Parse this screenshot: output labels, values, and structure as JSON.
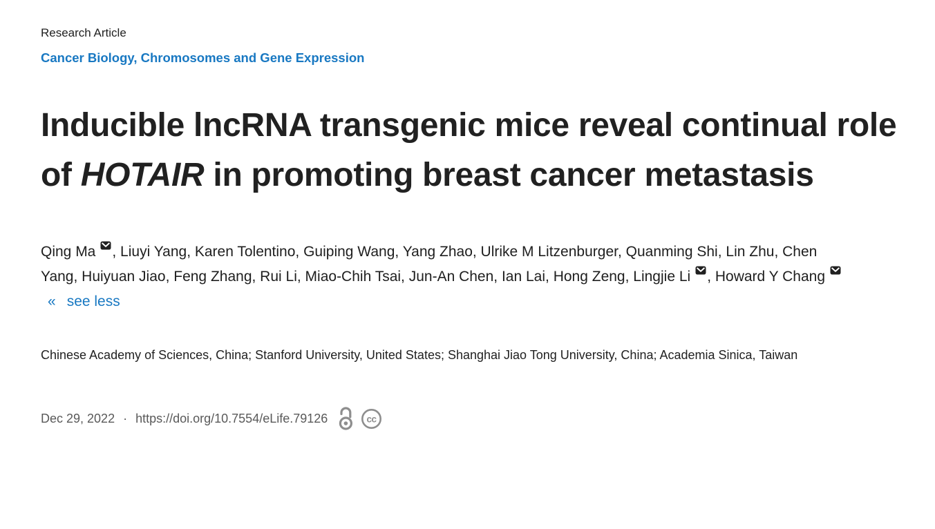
{
  "colors": {
    "accent_blue": "#1878c2",
    "heading_text": "#212121",
    "body_text": "#1e1e1e",
    "muted_text": "#595959",
    "icon_gray": "#8e8e8e"
  },
  "article": {
    "kicker": "Research Article",
    "subjects": "Cancer Biology, Chromosomes and Gene Expression",
    "title_parts": [
      {
        "text": "Inducible lncRNA transgenic mice reveal continual role of ",
        "italic": false
      },
      {
        "text": "HOTAIR",
        "italic": true
      },
      {
        "text": " in promoting breast cancer metastasis",
        "italic": false
      }
    ],
    "authors": [
      {
        "name": "Qing Ma",
        "email": true
      },
      {
        "name": "Liuyi Yang",
        "email": false
      },
      {
        "name": "Karen Tolentino",
        "email": false
      },
      {
        "name": "Guiping Wang",
        "email": false
      },
      {
        "name": "Yang Zhao",
        "email": false
      },
      {
        "name": "Ulrike M Litzenburger",
        "email": false
      },
      {
        "name": "Quanming Shi",
        "email": false
      },
      {
        "name": "Lin Zhu",
        "email": false
      },
      {
        "name": "Chen Yang",
        "email": false
      },
      {
        "name": "Huiyuan Jiao",
        "email": false
      },
      {
        "name": "Feng Zhang",
        "email": false
      },
      {
        "name": "Rui Li",
        "email": false
      },
      {
        "name": "Miao-Chih Tsai",
        "email": false
      },
      {
        "name": "Jun-An Chen",
        "email": false
      },
      {
        "name": "Ian Lai",
        "email": false
      },
      {
        "name": "Hong Zeng",
        "email": false
      },
      {
        "name": "Lingjie Li",
        "email": true
      },
      {
        "name": "Howard Y Chang",
        "email": true
      }
    ],
    "see_less": {
      "glyph": "«",
      "label": "see less"
    },
    "affiliations": "Chinese Academy of Sciences, China; Stanford University, United States; Shanghai Jiao Tong University, China; Academia Sinica, Taiwan",
    "footer": {
      "date": "Dec 29, 2022",
      "separator": "·",
      "doi": "https://doi.org/10.7554/eLife.79126",
      "icons": [
        "open-access-icon",
        "cc-license-icon"
      ]
    }
  }
}
